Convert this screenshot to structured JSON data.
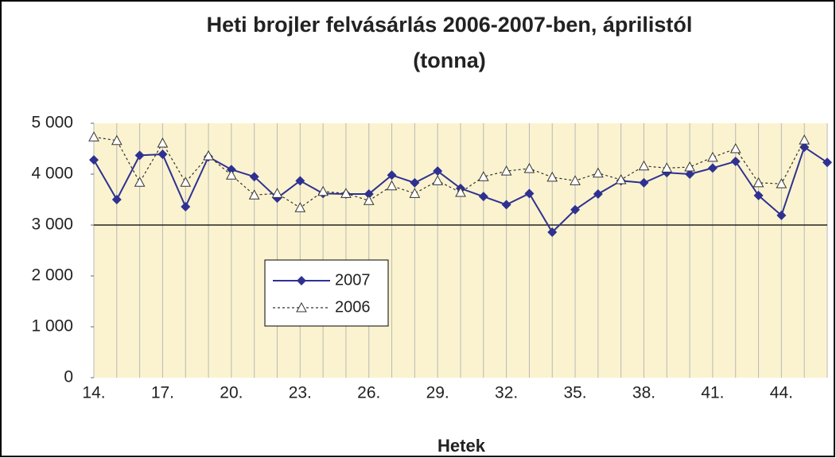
{
  "chart_data": {
    "type": "line",
    "title": [
      "Heti brojler felvásárlás 2006-2007-ben, áprilistól",
      "(tonna)"
    ],
    "x_label": "Hetek",
    "categories": [
      "14.",
      null,
      null,
      "17.",
      null,
      null,
      "20.",
      null,
      null,
      "23.",
      null,
      null,
      "26.",
      null,
      null,
      "29.",
      null,
      null,
      "32.",
      null,
      null,
      "35.",
      null,
      null,
      "38.",
      null,
      null,
      "41.",
      null,
      null,
      "44.",
      null,
      null
    ],
    "series": [
      {
        "name": "2007",
        "color": "#2e3192",
        "marker": "diamond",
        "dash": "solid",
        "values": [
          4280,
          3500,
          4370,
          4390,
          3360,
          4340,
          4090,
          3950,
          3530,
          3870,
          3620,
          3610,
          3610,
          3980,
          3830,
          4060,
          3720,
          3560,
          3400,
          3620,
          2860,
          3300,
          3610,
          3870,
          3830,
          4030,
          4000,
          4120,
          4250,
          3580,
          3190,
          4530,
          4230
        ]
      },
      {
        "name": "2006",
        "color": "#333333",
        "marker": "triangle",
        "dash": "dotted",
        "values": [
          4730,
          4660,
          3840,
          4610,
          3840,
          4360,
          3980,
          3590,
          3620,
          3340,
          3660,
          3620,
          3480,
          3770,
          3620,
          3870,
          3640,
          3950,
          4060,
          4110,
          3940,
          3870,
          4020,
          3890,
          4160,
          4120,
          4140,
          4330,
          4500,
          3830,
          3810,
          4670,
          null
        ]
      }
    ],
    "ylim": [
      0,
      5000
    ],
    "yticks": [
      0,
      {
        "value": 1000,
        "label": "1 000"
      },
      {
        "value": 2000,
        "label": "2 000"
      },
      {
        "value": 3000,
        "label": "3 000"
      },
      {
        "value": 4000,
        "label": "4 000"
      },
      {
        "value": 5000,
        "label": "5 000"
      }
    ],
    "hline": 3000,
    "x_grid": true,
    "legend": "left",
    "background": "#fbf3cf"
  }
}
